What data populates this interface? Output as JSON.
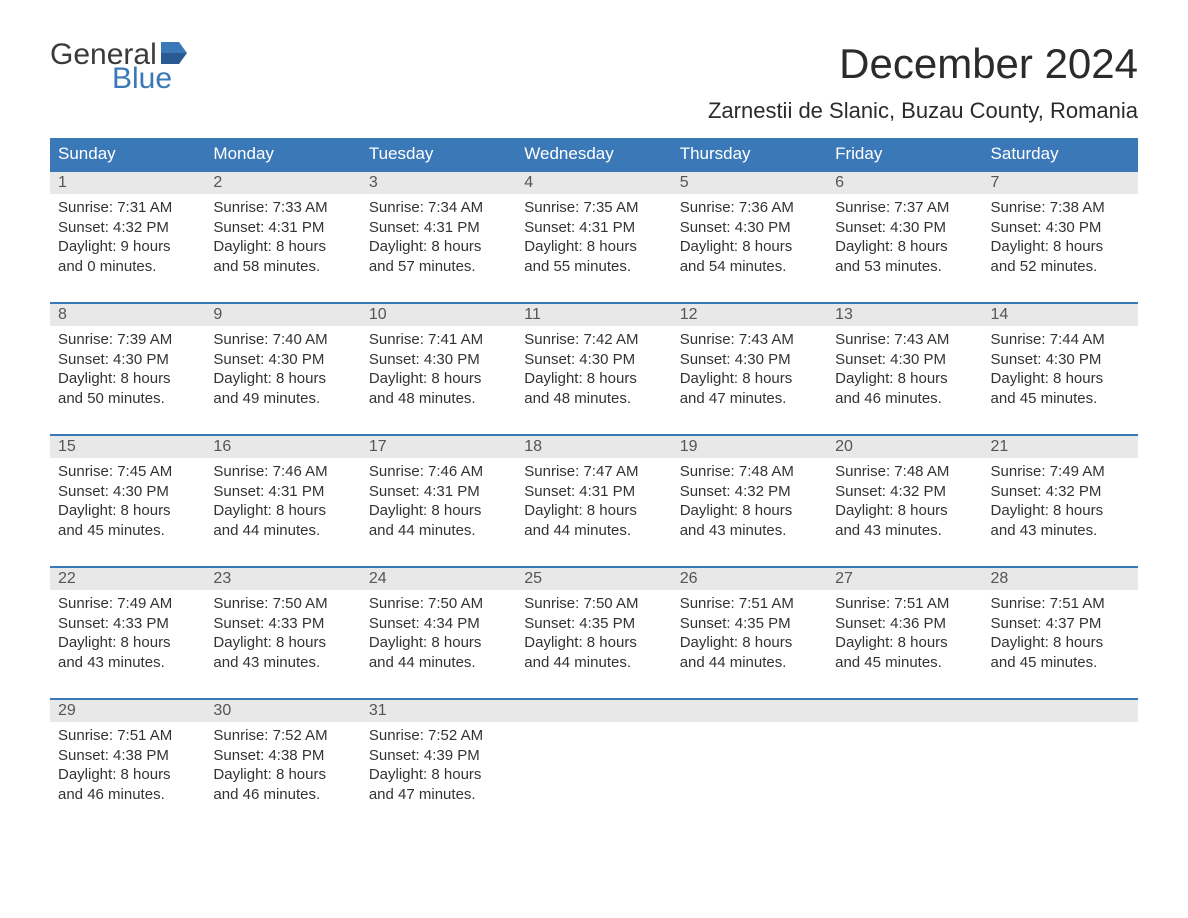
{
  "logo": {
    "word1": "General",
    "word2": "Blue"
  },
  "title": "December 2024",
  "location": "Zarnestii de Slanic, Buzau County, Romania",
  "dayHeaders": [
    "Sunday",
    "Monday",
    "Tuesday",
    "Wednesday",
    "Thursday",
    "Friday",
    "Saturday"
  ],
  "colors": {
    "headerBg": "#3b78b8",
    "headerText": "#ffffff",
    "dayNumBg": "#e8e8e8",
    "accentBorder": "#3b78b8",
    "bodyText": "#333333",
    "logoBlue": "#3b78b8"
  },
  "weeks": [
    {
      "nums": [
        "1",
        "2",
        "3",
        "4",
        "5",
        "6",
        "7"
      ],
      "cells": [
        {
          "sunrise": "Sunrise: 7:31 AM",
          "sunset": "Sunset: 4:32 PM",
          "d1": "Daylight: 9 hours",
          "d2": "and 0 minutes."
        },
        {
          "sunrise": "Sunrise: 7:33 AM",
          "sunset": "Sunset: 4:31 PM",
          "d1": "Daylight: 8 hours",
          "d2": "and 58 minutes."
        },
        {
          "sunrise": "Sunrise: 7:34 AM",
          "sunset": "Sunset: 4:31 PM",
          "d1": "Daylight: 8 hours",
          "d2": "and 57 minutes."
        },
        {
          "sunrise": "Sunrise: 7:35 AM",
          "sunset": "Sunset: 4:31 PM",
          "d1": "Daylight: 8 hours",
          "d2": "and 55 minutes."
        },
        {
          "sunrise": "Sunrise: 7:36 AM",
          "sunset": "Sunset: 4:30 PM",
          "d1": "Daylight: 8 hours",
          "d2": "and 54 minutes."
        },
        {
          "sunrise": "Sunrise: 7:37 AM",
          "sunset": "Sunset: 4:30 PM",
          "d1": "Daylight: 8 hours",
          "d2": "and 53 minutes."
        },
        {
          "sunrise": "Sunrise: 7:38 AM",
          "sunset": "Sunset: 4:30 PM",
          "d1": "Daylight: 8 hours",
          "d2": "and 52 minutes."
        }
      ]
    },
    {
      "nums": [
        "8",
        "9",
        "10",
        "11",
        "12",
        "13",
        "14"
      ],
      "cells": [
        {
          "sunrise": "Sunrise: 7:39 AM",
          "sunset": "Sunset: 4:30 PM",
          "d1": "Daylight: 8 hours",
          "d2": "and 50 minutes."
        },
        {
          "sunrise": "Sunrise: 7:40 AM",
          "sunset": "Sunset: 4:30 PM",
          "d1": "Daylight: 8 hours",
          "d2": "and 49 minutes."
        },
        {
          "sunrise": "Sunrise: 7:41 AM",
          "sunset": "Sunset: 4:30 PM",
          "d1": "Daylight: 8 hours",
          "d2": "and 48 minutes."
        },
        {
          "sunrise": "Sunrise: 7:42 AM",
          "sunset": "Sunset: 4:30 PM",
          "d1": "Daylight: 8 hours",
          "d2": "and 48 minutes."
        },
        {
          "sunrise": "Sunrise: 7:43 AM",
          "sunset": "Sunset: 4:30 PM",
          "d1": "Daylight: 8 hours",
          "d2": "and 47 minutes."
        },
        {
          "sunrise": "Sunrise: 7:43 AM",
          "sunset": "Sunset: 4:30 PM",
          "d1": "Daylight: 8 hours",
          "d2": "and 46 minutes."
        },
        {
          "sunrise": "Sunrise: 7:44 AM",
          "sunset": "Sunset: 4:30 PM",
          "d1": "Daylight: 8 hours",
          "d2": "and 45 minutes."
        }
      ]
    },
    {
      "nums": [
        "15",
        "16",
        "17",
        "18",
        "19",
        "20",
        "21"
      ],
      "cells": [
        {
          "sunrise": "Sunrise: 7:45 AM",
          "sunset": "Sunset: 4:30 PM",
          "d1": "Daylight: 8 hours",
          "d2": "and 45 minutes."
        },
        {
          "sunrise": "Sunrise: 7:46 AM",
          "sunset": "Sunset: 4:31 PM",
          "d1": "Daylight: 8 hours",
          "d2": "and 44 minutes."
        },
        {
          "sunrise": "Sunrise: 7:46 AM",
          "sunset": "Sunset: 4:31 PM",
          "d1": "Daylight: 8 hours",
          "d2": "and 44 minutes."
        },
        {
          "sunrise": "Sunrise: 7:47 AM",
          "sunset": "Sunset: 4:31 PM",
          "d1": "Daylight: 8 hours",
          "d2": "and 44 minutes."
        },
        {
          "sunrise": "Sunrise: 7:48 AM",
          "sunset": "Sunset: 4:32 PM",
          "d1": "Daylight: 8 hours",
          "d2": "and 43 minutes."
        },
        {
          "sunrise": "Sunrise: 7:48 AM",
          "sunset": "Sunset: 4:32 PM",
          "d1": "Daylight: 8 hours",
          "d2": "and 43 minutes."
        },
        {
          "sunrise": "Sunrise: 7:49 AM",
          "sunset": "Sunset: 4:32 PM",
          "d1": "Daylight: 8 hours",
          "d2": "and 43 minutes."
        }
      ]
    },
    {
      "nums": [
        "22",
        "23",
        "24",
        "25",
        "26",
        "27",
        "28"
      ],
      "cells": [
        {
          "sunrise": "Sunrise: 7:49 AM",
          "sunset": "Sunset: 4:33 PM",
          "d1": "Daylight: 8 hours",
          "d2": "and 43 minutes."
        },
        {
          "sunrise": "Sunrise: 7:50 AM",
          "sunset": "Sunset: 4:33 PM",
          "d1": "Daylight: 8 hours",
          "d2": "and 43 minutes."
        },
        {
          "sunrise": "Sunrise: 7:50 AM",
          "sunset": "Sunset: 4:34 PM",
          "d1": "Daylight: 8 hours",
          "d2": "and 44 minutes."
        },
        {
          "sunrise": "Sunrise: 7:50 AM",
          "sunset": "Sunset: 4:35 PM",
          "d1": "Daylight: 8 hours",
          "d2": "and 44 minutes."
        },
        {
          "sunrise": "Sunrise: 7:51 AM",
          "sunset": "Sunset: 4:35 PM",
          "d1": "Daylight: 8 hours",
          "d2": "and 44 minutes."
        },
        {
          "sunrise": "Sunrise: 7:51 AM",
          "sunset": "Sunset: 4:36 PM",
          "d1": "Daylight: 8 hours",
          "d2": "and 45 minutes."
        },
        {
          "sunrise": "Sunrise: 7:51 AM",
          "sunset": "Sunset: 4:37 PM",
          "d1": "Daylight: 8 hours",
          "d2": "and 45 minutes."
        }
      ]
    },
    {
      "nums": [
        "29",
        "30",
        "31",
        "",
        "",
        "",
        ""
      ],
      "cells": [
        {
          "sunrise": "Sunrise: 7:51 AM",
          "sunset": "Sunset: 4:38 PM",
          "d1": "Daylight: 8 hours",
          "d2": "and 46 minutes."
        },
        {
          "sunrise": "Sunrise: 7:52 AM",
          "sunset": "Sunset: 4:38 PM",
          "d1": "Daylight: 8 hours",
          "d2": "and 46 minutes."
        },
        {
          "sunrise": "Sunrise: 7:52 AM",
          "sunset": "Sunset: 4:39 PM",
          "d1": "Daylight: 8 hours",
          "d2": "and 47 minutes."
        },
        null,
        null,
        null,
        null
      ]
    }
  ]
}
